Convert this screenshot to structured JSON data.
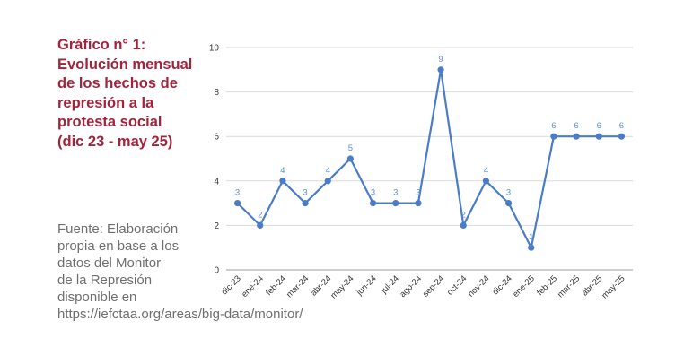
{
  "title_lines": [
    "Gráfico n° 1:",
    "Evolución mensual",
    "de los hechos de",
    "represión a la",
    "protesta social",
    "(dic 23 - may 25)"
  ],
  "source_lines": [
    "Fuente: Elaboración",
    "propia en base a los",
    "datos del Monitor",
    "de la Represión",
    "disponible en",
    "https://iefctaa.org/areas/big-data/monitor/"
  ],
  "colors": {
    "title": "#a3243a",
    "series": "#4a7cc7",
    "grid": "#d9d9d9"
  },
  "chart_data": {
    "type": "line",
    "categories": [
      "dic-23",
      "ene-24",
      "feb-24",
      "mar-24",
      "abr-24",
      "may-24",
      "jun-24",
      "jul-24",
      "ago-24",
      "sep-24",
      "oct-24",
      "nov-24",
      "dic-24",
      "ene-25",
      "feb-25",
      "mar-25",
      "abr-25",
      "may-25"
    ],
    "series": [
      {
        "values": [
          3,
          2,
          4,
          3,
          4,
          5,
          3,
          3,
          3,
          9,
          2,
          4,
          3,
          1,
          6,
          6,
          6,
          6
        ]
      }
    ],
    "data_labels": [
      "3",
      "2",
      "4",
      "3",
      "4",
      "5",
      "3",
      "3",
      "3",
      "9",
      "2",
      "4",
      "3",
      "1",
      "6",
      "6",
      "6",
      "6"
    ],
    "ylim": [
      0,
      10
    ],
    "yticks": [
      "0",
      "2",
      "4",
      "6",
      "8",
      "10"
    ],
    "grid": true,
    "legend": "none"
  }
}
